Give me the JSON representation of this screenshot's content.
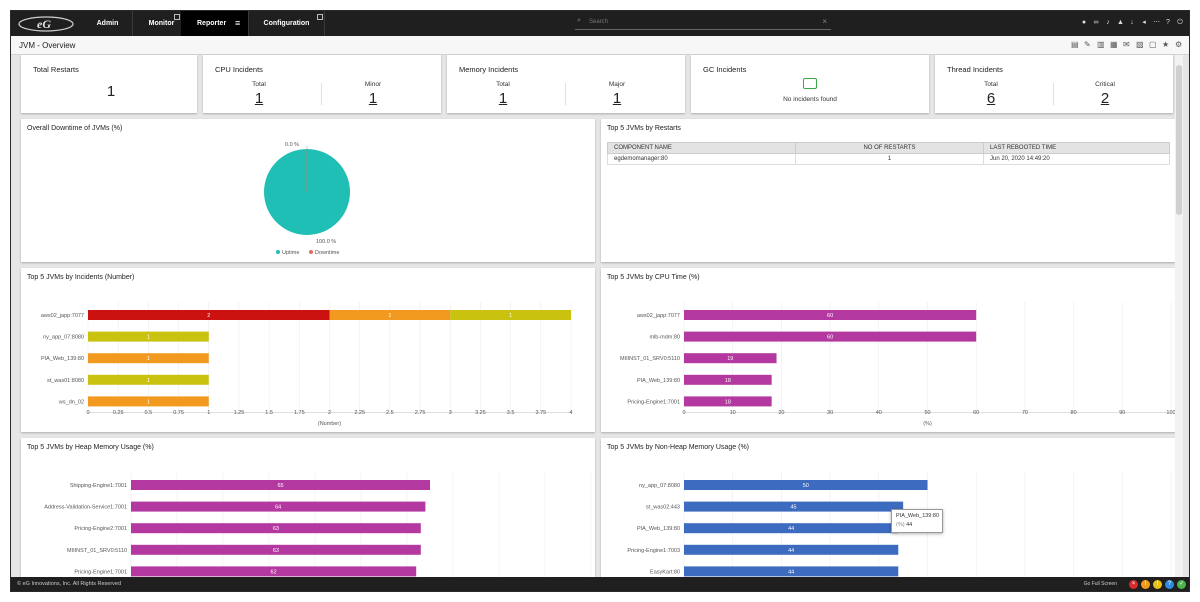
{
  "nav": {
    "tabs": [
      "Admin",
      "Monitor",
      "Reporter",
      "Configuration"
    ],
    "search_placeholder": "Search"
  },
  "page_title": "JVM - Overview",
  "kpi": {
    "total_restarts": {
      "title": "Total Restarts",
      "value": "1"
    },
    "cpu": {
      "title": "CPU Incidents",
      "total_label": "Total",
      "total": "1",
      "minor_label": "Minor",
      "minor": "1"
    },
    "memory": {
      "title": "Memory Incidents",
      "total_label": "Total",
      "total": "1",
      "major_label": "Major",
      "major": "1"
    },
    "gc": {
      "title": "GC Incidents",
      "message": "No incidents found"
    },
    "thread": {
      "title": "Thread Incidents",
      "total_label": "Total",
      "total": "6",
      "critical_label": "Critical",
      "critical": "2"
    }
  },
  "downtime": {
    "title": "Overall Downtime of JVMs (%)",
    "downtime_label": "0.0 %",
    "uptime_label": "100.0 %",
    "legend": [
      "Uptime",
      "Downtime"
    ],
    "colors": {
      "uptime": "#1fbfb5",
      "downtime": "#e86a5a"
    }
  },
  "restarts": {
    "title": "Top 5 JVMs by Restarts",
    "columns": [
      "COMPONENT NAME",
      "NO OF RESTARTS",
      "LAST REBOOTED TIME"
    ],
    "rows": [
      [
        "egdemomanager:80",
        "1",
        "Jun 20, 2020 14:49:20"
      ]
    ]
  },
  "chart_data": [
    {
      "id": "incidents",
      "title": "Top 5 JVMs by Incidents (Number)",
      "type": "bar",
      "stacked": true,
      "orientation": "horizontal",
      "xlabel": "(Number)",
      "xlim": [
        0,
        4
      ],
      "ticks": [
        "0",
        "0.25",
        "0.5",
        "0.75",
        "1",
        "1.25",
        "1.5",
        "1.75",
        "2",
        "2.25",
        "2.5",
        "2.75",
        "3",
        "3.25",
        "3.5",
        "3.75",
        "4"
      ],
      "categories": [
        "aws02_japp:7077",
        "ny_app_07:8080",
        "PIA_Web_139:80",
        "st_was01:8080",
        "ws_dn_02"
      ],
      "segments": [
        [
          {
            "value": 2,
            "color": "#cc1111"
          },
          {
            "value": 1,
            "color": "#f29a1f"
          },
          {
            "value": 1,
            "color": "#c9c20e"
          }
        ],
        [
          {
            "value": 1,
            "color": "#c9c20e"
          }
        ],
        [
          {
            "value": 1,
            "color": "#f29a1f"
          }
        ],
        [
          {
            "value": 1,
            "color": "#c9c20e"
          }
        ],
        [
          {
            "value": 1,
            "color": "#f29a1f"
          }
        ]
      ]
    },
    {
      "id": "cpu",
      "title": "Top 5 JVMs by CPU Time (%)",
      "type": "bar",
      "orientation": "horizontal",
      "xlabel": "(%)",
      "xlim": [
        0,
        100
      ],
      "ticks": [
        "0",
        "10",
        "20",
        "30",
        "40",
        "50",
        "60",
        "70",
        "80",
        "90",
        "100"
      ],
      "categories": [
        "aws02_japp:7077",
        "mlb-mdm:80",
        "MIIINST_01_SRV0:5110",
        "PIA_Web_139:80",
        "Pricing-Engine1:7001"
      ],
      "values": [
        60,
        60,
        19,
        18,
        18
      ],
      "color": "#b3389f"
    },
    {
      "id": "heap",
      "title": "Top 5 JVMs by Heap Memory Usage (%)",
      "type": "bar",
      "orientation": "horizontal",
      "xlim": [
        0,
        100
      ],
      "categories": [
        "Shipping-Engine1:7001",
        "Address-Validation-Service1:7001",
        "Pricing-Engine2:7001",
        "MIIINST_01_SRV0:5110",
        "Pricing-Engine1:7001"
      ],
      "values": [
        65,
        64,
        63,
        63,
        62
      ],
      "color": "#b3389f"
    },
    {
      "id": "nonheap",
      "title": "Top 5 JVMs by Non-Heap Memory Usage (%)",
      "type": "bar",
      "orientation": "horizontal",
      "xlim": [
        0,
        100
      ],
      "categories": [
        "ny_app_07:8080",
        "st_was02:443",
        "PIA_Web_139:80",
        "Pricing-Engine1:7003",
        "EasyKart:80"
      ],
      "values": [
        50,
        45,
        44,
        44,
        44
      ],
      "color": "#3d6bbf",
      "tooltip": {
        "name": "PIA_Web_139:80",
        "unit": "(%)",
        "value": "44"
      }
    }
  ],
  "footer": {
    "copyright": "© eG Innovations, Inc. All Rights Reserved",
    "fullscreen": "Go Full Screen"
  }
}
